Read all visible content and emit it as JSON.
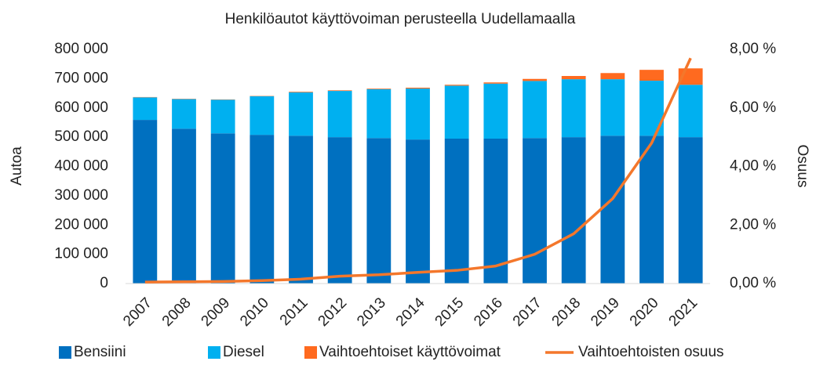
{
  "chart_data": {
    "type": "bar",
    "stacked": true,
    "title": "Henkilöautot käyttövoiman perusteella Uudellamaalla",
    "ylabel": "Autoa",
    "y2label": "Osuus",
    "categories": [
      "2007",
      "2008",
      "2009",
      "2010",
      "2011",
      "2012",
      "2013",
      "2014",
      "2015",
      "2016",
      "2017",
      "2018",
      "2019",
      "2020",
      "2021"
    ],
    "series": [
      {
        "name": "Bensiini",
        "color": "#0070c0",
        "values": [
          559000,
          529000,
          513000,
          508000,
          505000,
          500000,
          497000,
          492000,
          495000,
          495000,
          497000,
          500000,
          505000,
          505000,
          500000
        ]
      },
      {
        "name": "Diesel",
        "color": "#00b0f0",
        "values": [
          77000,
          101000,
          115000,
          132000,
          148000,
          158000,
          167000,
          174000,
          181000,
          188000,
          195000,
          198000,
          193000,
          188000,
          179000
        ]
      },
      {
        "name": "Vaihtoehtoiset käyttövoimat",
        "color": "#ff6a1f",
        "values": [
          1000,
          1000,
          1000,
          1000,
          2000,
          2000,
          2000,
          3000,
          3000,
          4000,
          7000,
          11000,
          21000,
          37000,
          56000
        ]
      },
      {
        "name": "Vaihtoehtoisten osuus",
        "color": "#f4772b",
        "type": "line",
        "axis": "y2",
        "values": [
          0.05,
          0.06,
          0.07,
          0.1,
          0.15,
          0.25,
          0.3,
          0.38,
          0.45,
          0.6,
          1.0,
          1.7,
          2.9,
          4.8,
          7.7
        ]
      }
    ],
    "ylim": [
      0,
      800000
    ],
    "yticks": [
      {
        "value": 0,
        "label": "0"
      },
      {
        "value": 100000,
        "label": "100 000"
      },
      {
        "value": 200000,
        "label": "200 000"
      },
      {
        "value": 300000,
        "label": "300 000"
      },
      {
        "value": 400000,
        "label": "400 000"
      },
      {
        "value": 500000,
        "label": "500 000"
      },
      {
        "value": 600000,
        "label": "600 000"
      },
      {
        "value": 700000,
        "label": "700 000"
      },
      {
        "value": 800000,
        "label": "800 000"
      }
    ],
    "y2lim": [
      0,
      8
    ],
    "y2ticks": [
      {
        "value": 0,
        "label": "0,00 %"
      },
      {
        "value": 2,
        "label": "2,00 %"
      },
      {
        "value": 4,
        "label": "4,00 %"
      },
      {
        "value": 6,
        "label": "6,00 %"
      },
      {
        "value": 8,
        "label": "8,00 %"
      }
    ],
    "legend": "bottom"
  }
}
